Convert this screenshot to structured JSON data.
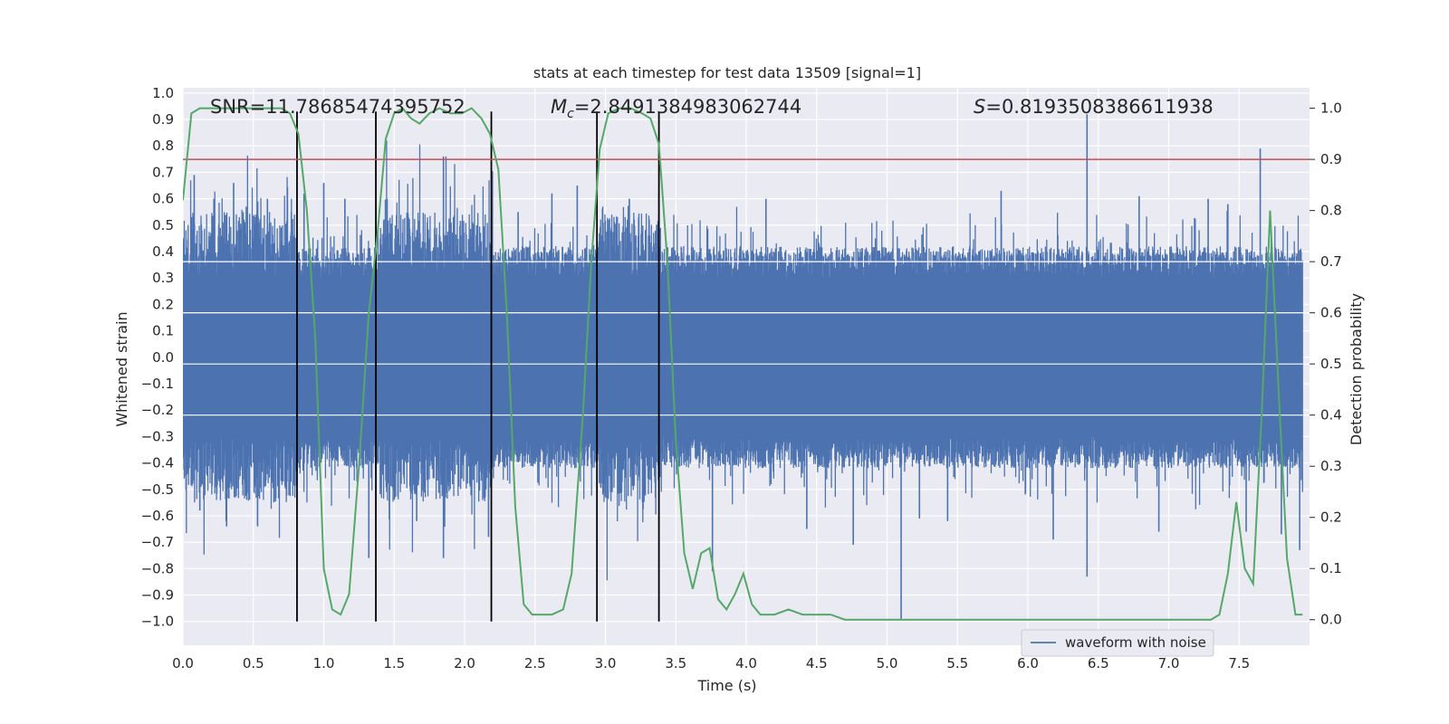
{
  "chart_data": {
    "type": "line",
    "title": "stats at each timestep for test data 13509 [signal=1]",
    "xlabel": "Time (s)",
    "ylabel_left": "Whitened strain",
    "ylabel_right": "Detection probability",
    "xlim": [
      0.0,
      8.0
    ],
    "ylim_left": [
      -1.09,
      1.02
    ],
    "ylim_right": [
      -0.05,
      1.04
    ],
    "x_ticks": [
      "0.0",
      "0.5",
      "1.0",
      "1.5",
      "2.0",
      "2.5",
      "3.0",
      "3.5",
      "4.0",
      "4.5",
      "5.0",
      "5.5",
      "6.0",
      "6.5",
      "7.0",
      "7.5"
    ],
    "y_ticks_left": [
      "1.0",
      "0.9",
      "0.8",
      "0.7",
      "0.6",
      "0.5",
      "0.4",
      "0.3",
      "0.2",
      "0.1",
      "0.0",
      "−0.1",
      "−0.2",
      "−0.3",
      "−0.4",
      "−0.5",
      "−0.6",
      "−0.7",
      "−0.8",
      "−0.9",
      "−1.0"
    ],
    "y_ticks_right": [
      "1.0",
      "0.9",
      "0.8",
      "0.7",
      "0.6",
      "0.5",
      "0.4",
      "0.3",
      "0.2",
      "0.1",
      "0.0"
    ],
    "grid": true,
    "legend": {
      "placement": "lower-center-right",
      "entries": [
        "waveform with noise"
      ]
    },
    "annotations": {
      "snr": "SNR=11.78685474395752",
      "mc_symbol": "M",
      "mc_sub": "c",
      "mc_value": "=2.8491384983062744",
      "s_symbol": "S",
      "s_value": "=0.8193508386611938"
    },
    "threshold_right": 0.9,
    "vertical_lines_x": [
      0.81,
      1.37,
      2.19,
      2.94,
      3.38
    ],
    "vertical_lines_yrange_left": [
      -1.0,
      0.93
    ],
    "waveform": {
      "name": "waveform with noise",
      "core_amplitude": 0.3,
      "burst_regions": [
        [
          0.0,
          0.8
        ],
        [
          1.4,
          2.2
        ],
        [
          2.95,
          3.38
        ]
      ],
      "spikes": [
        [
          0.08,
          0.69
        ],
        [
          0.12,
          -0.58
        ],
        [
          0.22,
          0.6
        ],
        [
          0.31,
          -0.64
        ],
        [
          0.36,
          0.66
        ],
        [
          0.45,
          0.57
        ],
        [
          0.53,
          -0.64
        ],
        [
          0.6,
          0.6
        ],
        [
          0.77,
          0.55
        ],
        [
          0.86,
          0.62
        ],
        [
          1.0,
          0.66
        ],
        [
          1.15,
          0.6
        ],
        [
          1.32,
          -0.76
        ],
        [
          1.45,
          0.6
        ],
        [
          1.66,
          -0.62
        ],
        [
          1.85,
          0.76
        ],
        [
          1.85,
          -0.76
        ],
        [
          2.17,
          -0.68
        ],
        [
          2.38,
          0.55
        ],
        [
          2.62,
          0.62
        ],
        [
          2.8,
          0.65
        ],
        [
          3.17,
          0.6
        ],
        [
          3.38,
          0.62
        ],
        [
          3.76,
          -0.81
        ],
        [
          4.14,
          0.6
        ],
        [
          4.43,
          -0.65
        ],
        [
          4.76,
          -0.71
        ],
        [
          5.1,
          -0.99
        ],
        [
          5.23,
          -0.61
        ],
        [
          5.43,
          -0.62
        ],
        [
          5.81,
          0.63
        ],
        [
          6.18,
          -0.69
        ],
        [
          6.42,
          0.92
        ],
        [
          6.42,
          -0.83
        ],
        [
          6.79,
          0.61
        ],
        [
          6.93,
          -0.66
        ],
        [
          7.28,
          0.6
        ],
        [
          7.42,
          0.58
        ],
        [
          7.55,
          -0.66
        ],
        [
          7.65,
          0.79
        ],
        [
          7.8,
          -0.67
        ],
        [
          7.93,
          -0.73
        ]
      ]
    },
    "detection_probability": {
      "color": "#55a868",
      "x": [
        0.0,
        0.06,
        0.12,
        0.2,
        0.3,
        0.4,
        0.5,
        0.6,
        0.7,
        0.76,
        0.82,
        0.88,
        0.94,
        1.0,
        1.06,
        1.12,
        1.18,
        1.25,
        1.32,
        1.38,
        1.44,
        1.5,
        1.56,
        1.62,
        1.68,
        1.75,
        1.82,
        1.9,
        1.98,
        2.05,
        2.12,
        2.18,
        2.24,
        2.3,
        2.36,
        2.42,
        2.48,
        2.55,
        2.62,
        2.7,
        2.76,
        2.84,
        2.9,
        2.96,
        3.02,
        3.1,
        3.18,
        3.26,
        3.32,
        3.38,
        3.44,
        3.5,
        3.56,
        3.62,
        3.68,
        3.74,
        3.8,
        3.86,
        3.92,
        3.98,
        4.04,
        4.1,
        4.2,
        4.3,
        4.4,
        4.5,
        4.6,
        4.7,
        4.8,
        4.9,
        5.0,
        5.1,
        5.2,
        5.3,
        5.4,
        5.5,
        5.7,
        5.9,
        6.1,
        6.3,
        6.5,
        6.7,
        6.8,
        6.9,
        7.0,
        7.1,
        7.2,
        7.3,
        7.36,
        7.42,
        7.48,
        7.54,
        7.6,
        7.66,
        7.72,
        7.78,
        7.84,
        7.9,
        7.95
      ],
      "y": [
        0.82,
        0.99,
        1.0,
        1.0,
        1.0,
        1.0,
        1.0,
        1.0,
        1.0,
        0.99,
        0.95,
        0.8,
        0.55,
        0.1,
        0.02,
        0.01,
        0.05,
        0.3,
        0.6,
        0.75,
        0.94,
        0.99,
        1.0,
        0.98,
        0.97,
        0.99,
        1.0,
        0.99,
        0.99,
        1.0,
        0.98,
        0.95,
        0.88,
        0.6,
        0.22,
        0.03,
        0.01,
        0.01,
        0.01,
        0.02,
        0.09,
        0.4,
        0.7,
        0.92,
        0.99,
        1.0,
        1.0,
        0.99,
        0.98,
        0.93,
        0.7,
        0.35,
        0.13,
        0.06,
        0.13,
        0.14,
        0.04,
        0.02,
        0.05,
        0.09,
        0.03,
        0.01,
        0.01,
        0.02,
        0.01,
        0.01,
        0.01,
        0.0,
        0.0,
        0.0,
        0.0,
        0.0,
        0.0,
        0.0,
        0.0,
        0.0,
        0.0,
        0.0,
        0.0,
        0.0,
        0.0,
        0.0,
        0.0,
        0.0,
        0.0,
        0.0,
        0.0,
        0.0,
        0.01,
        0.09,
        0.23,
        0.1,
        0.07,
        0.4,
        0.8,
        0.45,
        0.12,
        0.01,
        0.01
      ]
    },
    "colors": {
      "waveform": "#4c72b0",
      "probability": "#55a868",
      "threshold": "#c44e52",
      "vlines": "#000000",
      "plot_bg": "#eaeaf2",
      "grid": "#ffffff"
    }
  }
}
